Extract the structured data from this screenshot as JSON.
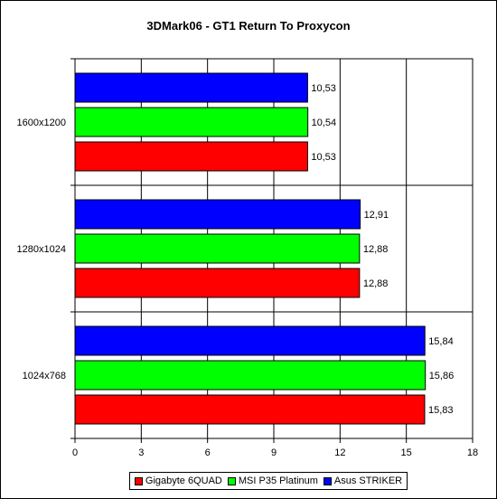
{
  "chart_data": {
    "type": "bar",
    "orientation": "horizontal",
    "title": "3DMark06 - GT1 Return To Proxycon",
    "categories": [
      "1600x1200",
      "1280x1024",
      "1024x768"
    ],
    "series": [
      {
        "name": "Asus STRIKER",
        "color": "#0000ff",
        "values": [
          10.53,
          12.91,
          15.84
        ],
        "labels": [
          "10,53",
          "12,91",
          "15,84"
        ]
      },
      {
        "name": "MSI P35 Platinum",
        "color": "#00ff00",
        "values": [
          10.54,
          12.88,
          15.86
        ],
        "labels": [
          "10,54",
          "12,88",
          "15,86"
        ]
      },
      {
        "name": "Gigabyte 6QUAD",
        "color": "#ff0000",
        "values": [
          10.53,
          12.88,
          15.83
        ],
        "labels": [
          "10,53",
          "12,88",
          "15,83"
        ]
      }
    ],
    "xlim": [
      0,
      18
    ],
    "xticks": [
      0,
      3,
      6,
      9,
      12,
      15,
      18
    ],
    "grid": true,
    "legend": {
      "placement": "bottom",
      "order": [
        "Gigabyte 6QUAD",
        "MSI P35 Platinum",
        "Asus STRIKER"
      ]
    }
  }
}
